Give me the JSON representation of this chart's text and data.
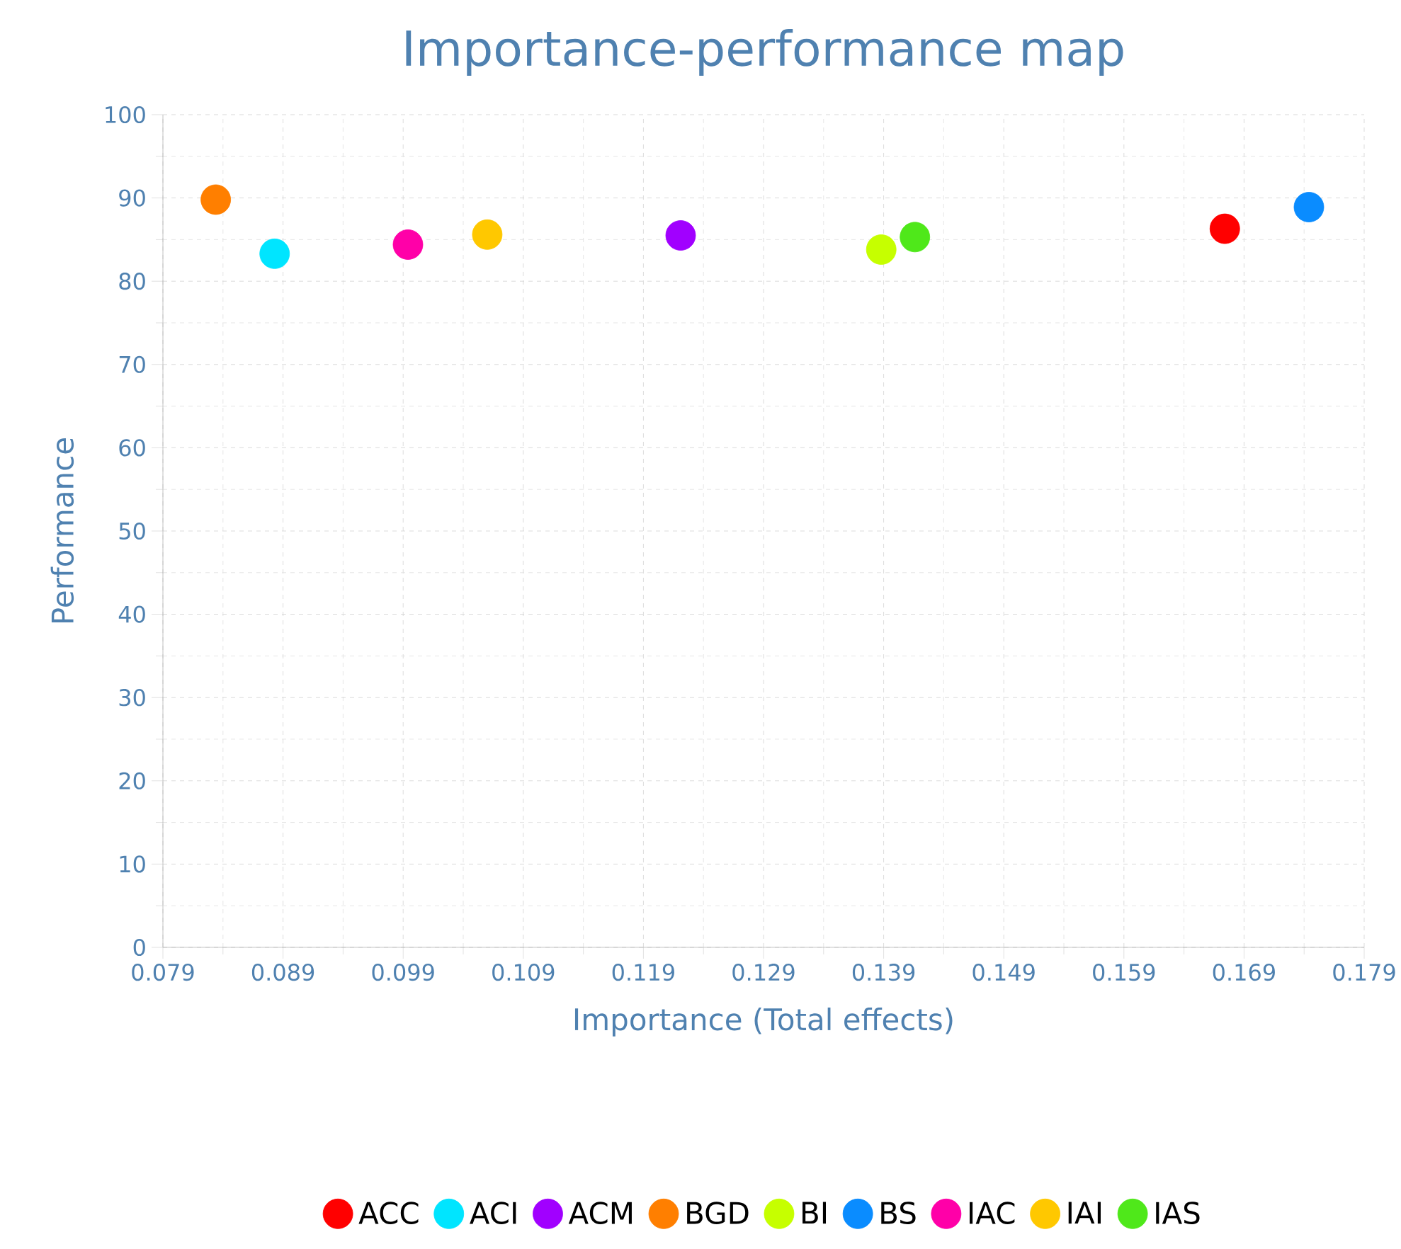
{
  "chart_data": {
    "type": "scatter",
    "title": "Importance-performance map",
    "xlabel": "Importance (Total effects)",
    "ylabel": "Performance",
    "xlim": [
      0.079,
      0.179
    ],
    "xticks": [
      0.079,
      0.089,
      0.099,
      0.109,
      0.119,
      0.129,
      0.139,
      0.149,
      0.159,
      0.169,
      0.179
    ],
    "ylim": [
      0,
      100
    ],
    "yticks": [
      0,
      10,
      20,
      30,
      40,
      50,
      60,
      70,
      80,
      90,
      100
    ],
    "grid": true,
    "legend": "bottom",
    "marker": "circle",
    "series": [
      {
        "name": "ACC",
        "color": "#ff0000",
        "x": [
          0.1674
        ],
        "values": [
          86.3
        ]
      },
      {
        "name": "ACI",
        "color": "#00e5ff",
        "x": [
          0.0883
        ],
        "values": [
          83.3
        ]
      },
      {
        "name": "ACM",
        "color": "#a100ff",
        "x": [
          0.1221
        ],
        "values": [
          85.5
        ]
      },
      {
        "name": "BGD",
        "color": "#ff7f00",
        "x": [
          0.0834
        ],
        "values": [
          89.8
        ]
      },
      {
        "name": "BI",
        "color": "#c6ff00",
        "x": [
          0.1388
        ],
        "values": [
          83.8
        ]
      },
      {
        "name": "BS",
        "color": "#0a8cff",
        "x": [
          0.1744
        ],
        "values": [
          88.9
        ]
      },
      {
        "name": "IAC",
        "color": "#ff00a8",
        "x": [
          0.0994
        ],
        "values": [
          84.4
        ]
      },
      {
        "name": "IAI",
        "color": "#ffc800",
        "x": [
          0.106
        ],
        "values": [
          85.6
        ]
      },
      {
        "name": "IAS",
        "color": "#4fe81a",
        "x": [
          0.1416
        ],
        "values": [
          85.3
        ]
      }
    ]
  }
}
